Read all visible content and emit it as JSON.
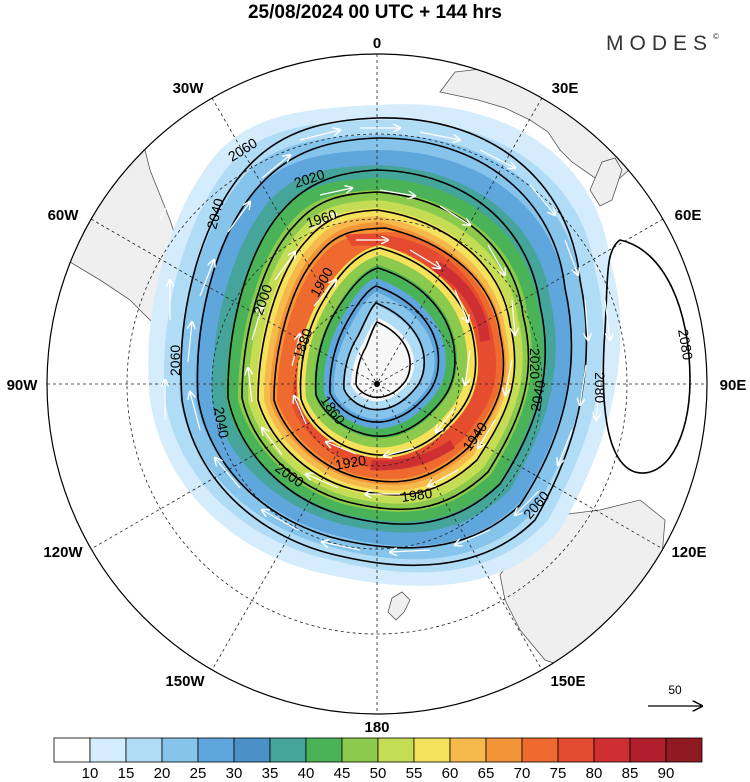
{
  "title": "25/08/2024  00 UTC  + 144 hrs",
  "brand": "MODES",
  "brand_mark": "©",
  "map": {
    "projection": "south-polar-stereographic",
    "meridian_labels": [
      {
        "text": "0",
        "lon": 0
      },
      {
        "text": "30E",
        "lon": 30
      },
      {
        "text": "60E",
        "lon": 60
      },
      {
        "text": "90E",
        "lon": 90
      },
      {
        "text": "120E",
        "lon": 120
      },
      {
        "text": "150E",
        "lon": 150
      },
      {
        "text": "180",
        "lon": 180
      },
      {
        "text": "150W",
        "lon": -150
      },
      {
        "text": "120W",
        "lon": -120
      },
      {
        "text": "90W",
        "lon": -90
      },
      {
        "text": "60W",
        "lon": -60
      },
      {
        "text": "30W",
        "lon": -30
      }
    ],
    "contour_labels": [
      "2060",
      "2040",
      "2020",
      "1960",
      "2000",
      "1900",
      "1880",
      "1860",
      "1920",
      "1940",
      "1980",
      "2000",
      "2020",
      "2040",
      "2060",
      "2080",
      "2080",
      "1980",
      "1940",
      "2040",
      "2060"
    ],
    "contour_levels": [
      1860,
      1880,
      1900,
      1920,
      1940,
      1960,
      1980,
      2000,
      2020,
      2040,
      2060,
      2080
    ],
    "vector_reference": "50",
    "colors": {
      "land": "#efefef",
      "coast": "#555555",
      "contour": "#000000",
      "vectors": "#ffffff"
    }
  },
  "colorbar": {
    "labels": [
      "10",
      "15",
      "20",
      "25",
      "30",
      "35",
      "40",
      "45",
      "50",
      "55",
      "60",
      "65",
      "70",
      "75",
      "80",
      "85",
      "90"
    ],
    "colors": [
      "#ffffff",
      "#d4ecfb",
      "#b1dcf6",
      "#86c4ec",
      "#5fa6dd",
      "#4b91c7",
      "#46a59a",
      "#4bb357",
      "#8cca4e",
      "#c5dd55",
      "#f4e25c",
      "#f6b94c",
      "#f39438",
      "#ee6a2e",
      "#e34a2f",
      "#cd2f33",
      "#b21f2c",
      "#8f1a22"
    ]
  }
}
